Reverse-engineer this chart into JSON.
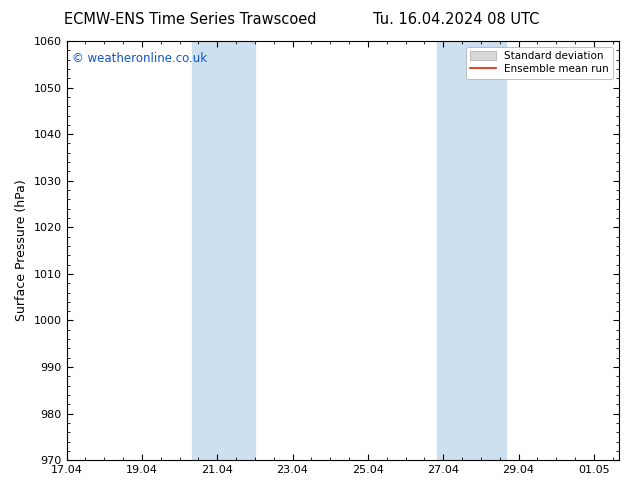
{
  "title_left": "ECMW-ENS Time Series Trawscoed",
  "title_right": "Tu. 16.04.2024 08 UTC",
  "ylabel": "Surface Pressure (hPa)",
  "ylim": [
    970,
    1060
  ],
  "yticks": [
    970,
    980,
    990,
    1000,
    1010,
    1020,
    1030,
    1040,
    1050,
    1060
  ],
  "xlim_start": 0.0,
  "xlim_end": 14.667,
  "xtick_labels": [
    "17.04",
    "19.04",
    "21.04",
    "23.04",
    "25.04",
    "27.04",
    "29.04",
    "01.05"
  ],
  "xtick_positions": [
    0,
    2,
    4,
    6,
    8,
    10,
    12,
    14
  ],
  "shaded_bands": [
    {
      "x_start": 3.33,
      "x_end": 5.0
    },
    {
      "x_start": 9.83,
      "x_end": 11.67
    }
  ],
  "shade_color": "#cce0f0",
  "watermark": "© weatheronline.co.uk",
  "watermark_color": "#1155cc",
  "legend_std_color": "#d8d8d8",
  "legend_mean_color": "#dd2200",
  "background_color": "#ffffff",
  "plot_bg_color": "#ffffff",
  "title_fontsize": 10.5,
  "ylabel_fontsize": 9,
  "tick_fontsize": 8,
  "watermark_fontsize": 8.5,
  "legend_fontsize": 7.5
}
